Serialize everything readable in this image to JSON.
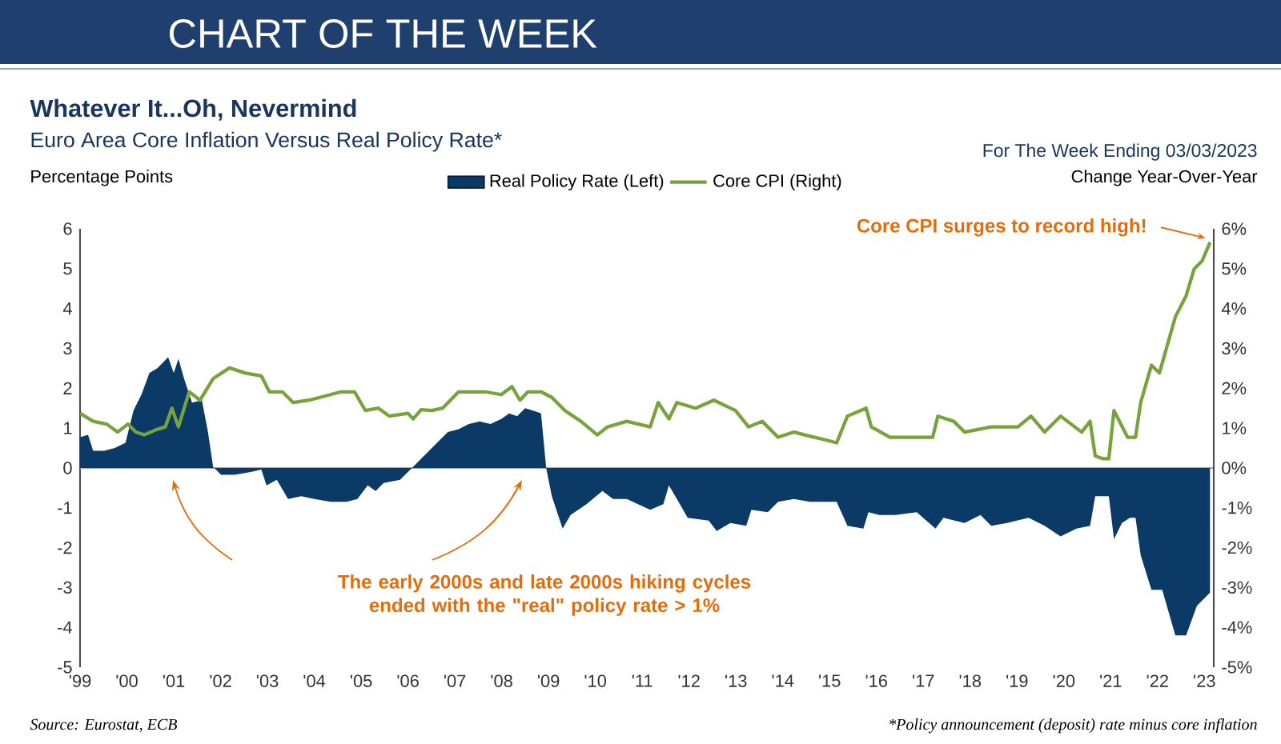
{
  "chart_data": {
    "type": "area",
    "title": "Whatever It...Oh, Nevermind",
    "subtitle": "Euro Area Core Inflation Versus Real Policy Rate*",
    "ylabel": "Percentage Points",
    "y2label": "Change Year-Over-Year",
    "annotations": [
      "CHART OF THE WEEK",
      "For The Week Ending 03/03/2023",
      {
        "text": "Core CPI surges to record high!",
        "x": 2023.12,
        "y": 5.66
      },
      "The early 2000s and late 2000s hiking cycles ended with the \"real\" policy rate > 1%",
      "Source: Eurostat, ECB",
      "*Policy announcement (deposit) rate minus core inflation"
    ],
    "legend": "top",
    "line_style": "solid",
    "xlim": [
      1999,
      2023.2
    ],
    "xticks": [
      {
        "value": 1999,
        "label": "'99"
      },
      {
        "value": 2000,
        "label": "'00"
      },
      {
        "value": 2001,
        "label": "'01"
      },
      {
        "value": 2002,
        "label": "'02"
      },
      {
        "value": 2003,
        "label": "'03"
      },
      {
        "value": 2004,
        "label": "'04"
      },
      {
        "value": 2005,
        "label": "'05"
      },
      {
        "value": 2006,
        "label": "'06"
      },
      {
        "value": 2007,
        "label": "'07"
      },
      {
        "value": 2008,
        "label": "'08"
      },
      {
        "value": 2009,
        "label": "'09"
      },
      {
        "value": 2010,
        "label": "'10"
      },
      {
        "value": 2011,
        "label": "'11"
      },
      {
        "value": 2012,
        "label": "'12"
      },
      {
        "value": 2013,
        "label": "'13"
      },
      {
        "value": 2014,
        "label": "'14"
      },
      {
        "value": 2015,
        "label": "'15"
      },
      {
        "value": 2016,
        "label": "'16"
      },
      {
        "value": 2017,
        "label": "'17"
      },
      {
        "value": 2018,
        "label": "'18"
      },
      {
        "value": 2019,
        "label": "'19"
      },
      {
        "value": 2020,
        "label": "'20"
      },
      {
        "value": 2021,
        "label": "'21"
      },
      {
        "value": 2022,
        "label": "'22"
      },
      {
        "value": 2023,
        "label": "'23"
      }
    ],
    "ylim": [
      -5,
      6
    ],
    "yticks": [
      -5,
      -4,
      -3,
      -2,
      -1,
      0,
      1,
      2,
      3,
      4,
      5,
      6
    ],
    "y2lim": [
      -5,
      6
    ],
    "y2ticks": [
      {
        "value": -5,
        "label": "-5%"
      },
      {
        "value": -4,
        "label": "-4%"
      },
      {
        "value": -3,
        "label": "-3%"
      },
      {
        "value": -2,
        "label": "-2%"
      },
      {
        "value": -1,
        "label": "-1%"
      },
      {
        "value": 0,
        "label": "0%"
      },
      {
        "value": 1,
        "label": "1%"
      },
      {
        "value": 2,
        "label": "2%"
      },
      {
        "value": 3,
        "label": "3%"
      },
      {
        "value": 4,
        "label": "4%"
      },
      {
        "value": 5,
        "label": "5%"
      },
      {
        "value": 6,
        "label": "6%"
      }
    ],
    "ref_lines": [
      {
        "axis": "y",
        "value": 0,
        "color": "#a6a6a6"
      }
    ],
    "series": [
      {
        "name": "Real Policy Rate (Left)",
        "type": "area",
        "color": "#0b3a66",
        "x": [
          1999.0,
          1999.17,
          1999.28,
          1999.51,
          1999.74,
          1999.97,
          2000.14,
          2000.31,
          2000.48,
          2000.65,
          2000.88,
          2001.0,
          2001.1,
          2001.22,
          2001.39,
          2001.6,
          2001.73,
          2001.84,
          2002.01,
          2002.3,
          2002.64,
          2002.87,
          2002.98,
          2003.2,
          2003.44,
          2003.72,
          2004.0,
          2004.35,
          2004.69,
          2004.92,
          2005.14,
          2005.31,
          2005.48,
          2005.83,
          2006.05,
          2006.22,
          2006.39,
          2006.62,
          2006.85,
          2007.08,
          2007.3,
          2007.53,
          2007.76,
          2007.99,
          2008.16,
          2008.33,
          2008.5,
          2008.67,
          2008.84,
          2008.95,
          2009.07,
          2009.3,
          2009.47,
          2009.81,
          2010.15,
          2010.38,
          2010.67,
          2011.17,
          2011.45,
          2011.57,
          2011.74,
          2011.97,
          2012.42,
          2012.59,
          2012.88,
          2013.22,
          2013.33,
          2013.68,
          2013.9,
          2014.24,
          2014.58,
          2015.15,
          2015.38,
          2015.72,
          2015.83,
          2016.06,
          2016.4,
          2016.86,
          2017.26,
          2017.43,
          2017.88,
          2018.22,
          2018.45,
          2018.79,
          2019.25,
          2019.59,
          2019.93,
          2020.27,
          2020.56,
          2020.67,
          2020.96,
          2021.07,
          2021.24,
          2021.41,
          2021.53,
          2021.64,
          2021.87,
          2022.1,
          2022.38,
          2022.61,
          2022.84,
          2022.95,
          2023.12
        ],
        "values": [
          0.77,
          0.83,
          0.43,
          0.43,
          0.5,
          0.63,
          1.44,
          1.84,
          2.38,
          2.5,
          2.78,
          2.38,
          2.74,
          2.24,
          1.64,
          1.7,
          0.9,
          0.03,
          -0.17,
          -0.17,
          -0.1,
          -0.04,
          -0.44,
          -0.3,
          -0.78,
          -0.71,
          -0.78,
          -0.85,
          -0.85,
          -0.78,
          -0.44,
          -0.58,
          -0.38,
          -0.3,
          -0.04,
          0.16,
          0.36,
          0.63,
          0.9,
          0.97,
          1.1,
          1.17,
          1.1,
          1.23,
          1.37,
          1.3,
          1.5,
          1.44,
          1.37,
          0,
          -0.71,
          -1.52,
          -1.18,
          -0.91,
          -0.58,
          -0.78,
          -0.78,
          -1.05,
          -0.91,
          -0.44,
          -0.78,
          -1.25,
          -1.32,
          -1.58,
          -1.38,
          -1.45,
          -1.05,
          -1.11,
          -0.85,
          -0.78,
          -0.85,
          -0.85,
          -1.45,
          -1.52,
          -1.11,
          -1.18,
          -1.18,
          -1.11,
          -1.52,
          -1.25,
          -1.38,
          -1.18,
          -1.45,
          -1.38,
          -1.25,
          -1.45,
          -1.72,
          -1.52,
          -1.45,
          -0.71,
          -0.71,
          -1.79,
          -1.38,
          -1.25,
          -1.25,
          -2.19,
          -3.06,
          -3.06,
          -4.2,
          -4.2,
          -3.46,
          -3.33,
          -3.13
        ]
      },
      {
        "name": "Core CPI (Right)",
        "type": "line",
        "axis": "y2",
        "color": "#77a33c",
        "x": [
          1999.0,
          1999.28,
          1999.57,
          1999.8,
          2000.02,
          2000.19,
          2000.37,
          2000.65,
          2000.82,
          2000.96,
          2001.1,
          2001.33,
          2001.56,
          2001.84,
          2002.19,
          2002.53,
          2002.87,
          2003.04,
          2003.32,
          2003.55,
          2003.89,
          2004.12,
          2004.57,
          2004.86,
          2005.09,
          2005.37,
          2005.6,
          2006.0,
          2006.11,
          2006.28,
          2006.51,
          2006.74,
          2007.08,
          2007.65,
          2007.99,
          2008.22,
          2008.39,
          2008.56,
          2008.84,
          2009.07,
          2009.35,
          2009.69,
          2010.04,
          2010.26,
          2010.67,
          2011.17,
          2011.34,
          2011.57,
          2011.74,
          2012.14,
          2012.53,
          2012.99,
          2013.27,
          2013.56,
          2013.9,
          2014.24,
          2014.47,
          2014.92,
          2015.15,
          2015.38,
          2015.78,
          2015.89,
          2016.29,
          2016.74,
          2017.2,
          2017.31,
          2017.65,
          2017.88,
          2018.45,
          2019.02,
          2019.3,
          2019.59,
          2019.93,
          2020.38,
          2020.56,
          2020.67,
          2020.84,
          2020.96,
          2021.07,
          2021.36,
          2021.53,
          2021.64,
          2021.87,
          2022.04,
          2022.38,
          2022.61,
          2022.78,
          2022.95,
          2023.12
        ],
        "values": [
          1.37,
          1.17,
          1.1,
          0.9,
          1.1,
          0.9,
          0.83,
          0.97,
          1.03,
          1.5,
          1.03,
          1.91,
          1.7,
          2.24,
          2.51,
          2.38,
          2.31,
          1.91,
          1.91,
          1.64,
          1.7,
          1.77,
          1.91,
          1.91,
          1.44,
          1.5,
          1.3,
          1.37,
          1.23,
          1.46,
          1.44,
          1.5,
          1.91,
          1.91,
          1.84,
          2.04,
          1.7,
          1.91,
          1.91,
          1.77,
          1.44,
          1.17,
          0.83,
          1.03,
          1.17,
          1.03,
          1.64,
          1.23,
          1.64,
          1.5,
          1.7,
          1.44,
          1.03,
          1.17,
          0.77,
          0.9,
          0.83,
          0.7,
          0.63,
          1.3,
          1.5,
          1.03,
          0.77,
          0.77,
          0.77,
          1.3,
          1.17,
          0.9,
          1.03,
          1.03,
          1.3,
          0.9,
          1.3,
          0.9,
          1.17,
          0.3,
          0.23,
          0.23,
          1.44,
          0.77,
          0.77,
          1.64,
          2.58,
          2.38,
          3.79,
          4.32,
          4.99,
          5.19,
          5.66
        ]
      }
    ]
  }
}
